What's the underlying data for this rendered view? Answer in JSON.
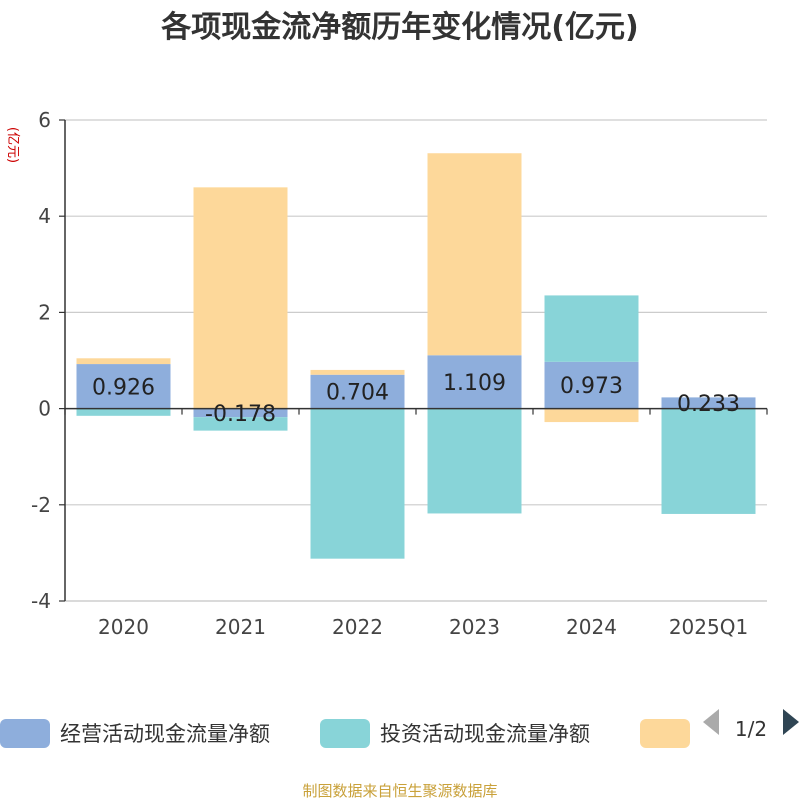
{
  "source_note": "制图数据来自恒生聚源数据库",
  "pager": {
    "text": "1/2"
  },
  "colors": {
    "operating": "#8eaedc",
    "investing": "#88d4d8",
    "financing": "#fdd89a",
    "ylabel": "#cc0000",
    "source": "#c9a13a",
    "pager_prev": "#aaaaaa",
    "pager_next": "#2f4554"
  },
  "chart_data": {
    "type": "bar",
    "stacked": true,
    "title": "各项现金流净额历年变化情况(亿元)",
    "ylabel": "(亿元)",
    "categories": [
      "2020",
      "2021",
      "2022",
      "2023",
      "2024",
      "2025Q1"
    ],
    "ylim": [
      -4,
      6
    ],
    "yticks": [
      -4,
      -2,
      0,
      2,
      4,
      6
    ],
    "grid": true,
    "legend_position": "bottom",
    "series": [
      {
        "name": "经营活动现金流量净额",
        "color_key": "operating",
        "values": [
          0.926,
          -0.178,
          0.704,
          1.109,
          0.973,
          0.233
        ],
        "labels": true
      },
      {
        "name": "投资活动现金流量净额",
        "color_key": "investing",
        "values": [
          -0.15,
          -0.28,
          -3.12,
          -2.18,
          1.38,
          -2.19
        ],
        "labels": false
      },
      {
        "name": "",
        "color_key": "financing",
        "values": [
          0.12,
          4.6,
          0.1,
          4.2,
          -0.28,
          0.0
        ],
        "labels": false
      }
    ]
  }
}
